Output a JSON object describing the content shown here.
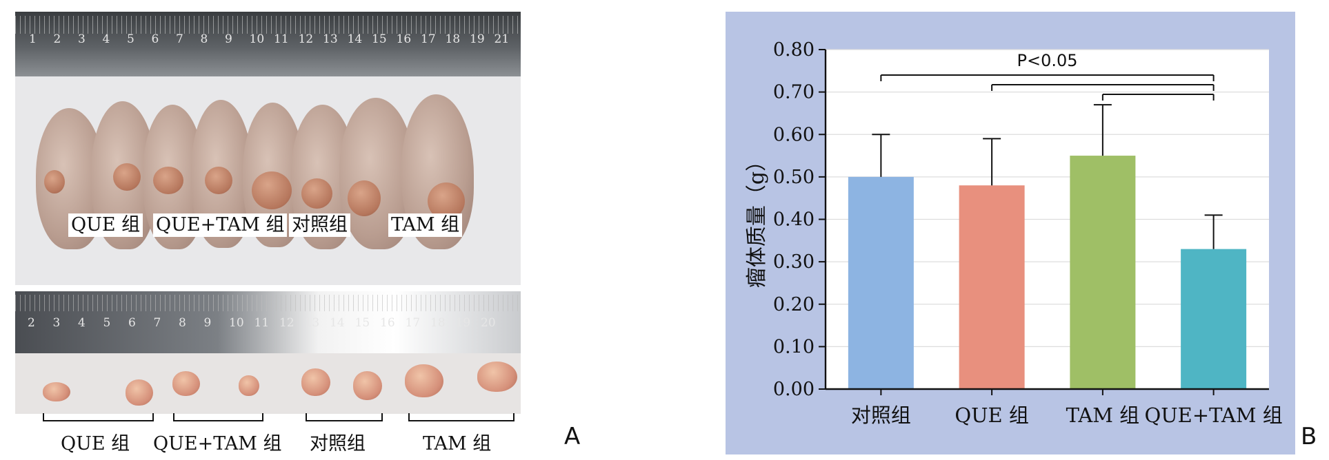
{
  "panel_a": {
    "letter": "A",
    "top_ruler_numbers": [
      "1",
      "2",
      "3",
      "4",
      "5",
      "6",
      "7",
      "8",
      "9",
      "10",
      "11",
      "12",
      "13",
      "14",
      "15",
      "16",
      "17",
      "18",
      "19",
      "21"
    ],
    "bottom_ruler_numbers": [
      "2",
      "3",
      "4",
      "5",
      "6",
      "7",
      "8",
      "9",
      "10",
      "11",
      "12",
      "13",
      "14",
      "15",
      "16",
      "17",
      "18",
      "19",
      "20"
    ],
    "mouse_group_labels": [
      "QUE 组",
      "QUE+TAM 组",
      "对照组",
      "TAM 组"
    ],
    "tumor_group_labels": [
      "QUE 组",
      "QUE+TAM 组",
      "对照组",
      "TAM 组"
    ]
  },
  "panel_b": {
    "letter": "B"
  },
  "colors": {
    "panel_background": "#b8c4e4",
    "bar_control": "#8db4e2",
    "bar_que": "#e8907e",
    "bar_tam": "#9fbf66",
    "bar_que_tam": "#4fb5c4"
  },
  "chart_data": {
    "type": "bar",
    "title": "",
    "xlabel": "",
    "ylabel": "瘤体质量（g）",
    "categories": [
      "对照组",
      "QUE 组",
      "TAM 组",
      "QUE+TAM 组"
    ],
    "values": [
      0.5,
      0.48,
      0.55,
      0.33
    ],
    "error_upper": [
      0.6,
      0.59,
      0.67,
      0.41
    ],
    "ylim": [
      0.0,
      0.8
    ],
    "yticks": [
      "0.00",
      "0.10",
      "0.20",
      "0.30",
      "0.40",
      "0.50",
      "0.60",
      "0.70",
      "0.80"
    ],
    "grid": true,
    "significance": {
      "label": "P<0.05",
      "comparisons": [
        [
          "对照组",
          "QUE+TAM 组"
        ],
        [
          "QUE 组",
          "QUE+TAM 组"
        ],
        [
          "TAM 组",
          "QUE+TAM 组"
        ]
      ]
    }
  }
}
